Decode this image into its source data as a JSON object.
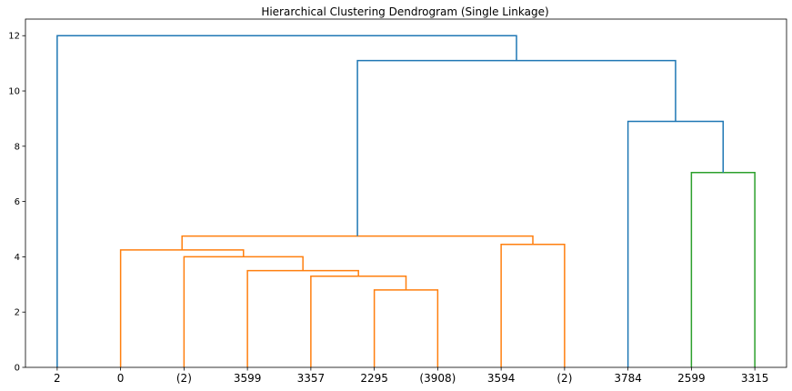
{
  "chart_data": {
    "type": "dendrogram",
    "title": "Hierarchical Clustering Dendrogram (Single Linkage)",
    "xlabel": "",
    "ylabel": "",
    "ylim": [
      0,
      12.6
    ],
    "yticks": [
      0,
      2,
      4,
      6,
      8,
      10,
      12
    ],
    "grid": false,
    "leaves": [
      "2",
      "0",
      "(2)",
      "3599",
      "3357",
      "2295",
      "(3908)",
      "3594",
      "(2)",
      "3784",
      "2599",
      "3315"
    ],
    "colors": {
      "orange": "#ff7f0e",
      "green": "#2ca02c",
      "blue": "#1f77b4"
    },
    "links": [
      {
        "x": [
          5.0,
          6.0
        ],
        "height": 2.8,
        "color": "orange"
      },
      {
        "x": [
          4.0,
          5.5
        ],
        "height": 3.3,
        "color": "orange"
      },
      {
        "x": [
          3.0,
          4.75
        ],
        "height": 3.5,
        "color": "orange"
      },
      {
        "x": [
          2.0,
          3.875
        ],
        "height": 4.0,
        "color": "orange"
      },
      {
        "x": [
          1.0,
          2.9375
        ],
        "height": 4.25,
        "color": "orange"
      },
      {
        "x": [
          7.0,
          8.0
        ],
        "height": 4.45,
        "color": "orange"
      },
      {
        "x": [
          1.96875,
          7.5
        ],
        "height": 4.75,
        "color": "orange"
      },
      {
        "x": [
          10.0,
          11.0
        ],
        "height": 7.05,
        "color": "green"
      },
      {
        "x": [
          9.0,
          10.5
        ],
        "height": 8.9,
        "color": "blue"
      },
      {
        "x": [
          4.734375,
          9.75
        ],
        "height": 11.1,
        "color": "blue"
      },
      {
        "x": [
          0.0,
          7.2421875
        ],
        "height": 12.0,
        "color": "blue"
      }
    ]
  }
}
